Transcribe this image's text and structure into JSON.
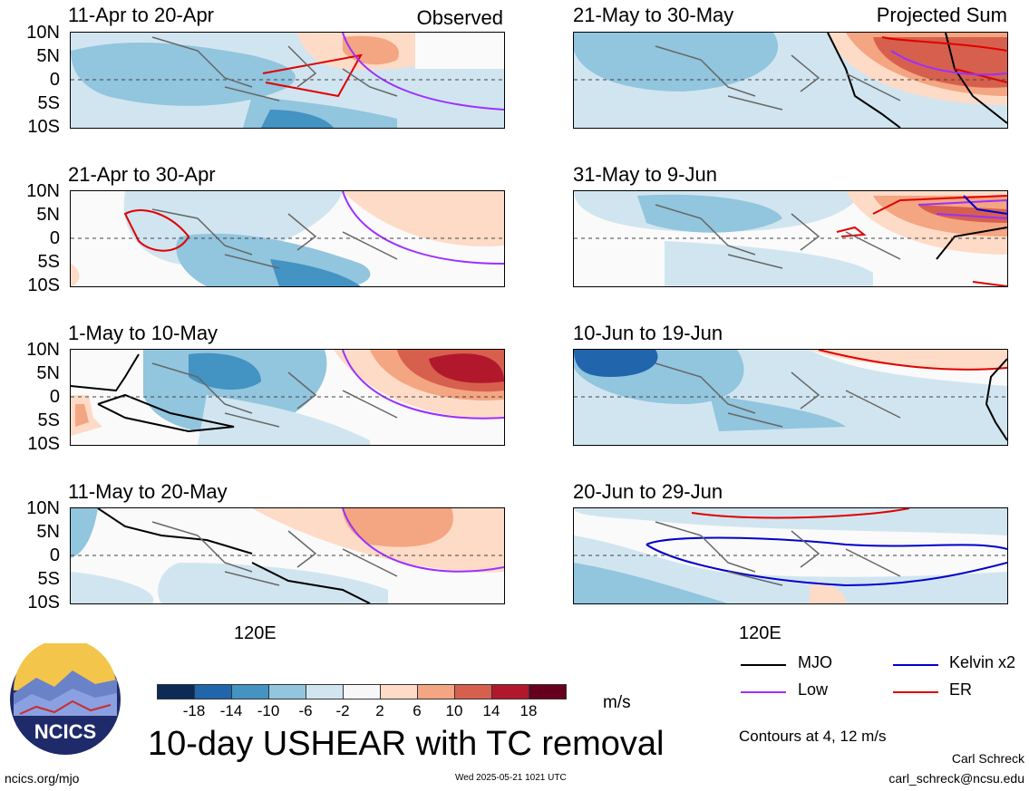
{
  "panels": [
    {
      "title": "11-Apr to 20-Apr",
      "tag": "Observed"
    },
    {
      "title": "21-Apr to 30-Apr",
      "tag": ""
    },
    {
      "title": "1-May to 10-May",
      "tag": ""
    },
    {
      "title": "11-May to 20-May",
      "tag": ""
    },
    {
      "title": "21-May to 30-May",
      "tag": "Projected Sum"
    },
    {
      "title": "31-May to 9-Jun",
      "tag": ""
    },
    {
      "title": "10-Jun to 19-Jun",
      "tag": ""
    },
    {
      "title": "20-Jun to 29-Jun",
      "tag": ""
    }
  ],
  "y_axis_labels": [
    "10N",
    "5N",
    "0",
    "5S",
    "10S"
  ],
  "x_axis_label": "120E",
  "colorbar": {
    "labels": [
      "-18",
      "-14",
      "-10",
      "-6",
      "-2",
      "2",
      "6",
      "10",
      "14",
      "18"
    ],
    "colors": [
      "#0b2a55",
      "#2166ac",
      "#4393c3",
      "#92c5de",
      "#d1e5f0",
      "#f7f7f7",
      "#fddbc7",
      "#f4a582",
      "#d6604d",
      "#b2182b",
      "#67001f"
    ],
    "unit": "m/s"
  },
  "legend": {
    "mjo": {
      "label": "MJO",
      "color": "#000000"
    },
    "low": {
      "label": "Low",
      "color": "#9b30ff"
    },
    "kelvin": {
      "label": "Kelvin x2",
      "color": "#0000cc"
    },
    "er": {
      "label": "ER",
      "color": "#e00000"
    }
  },
  "contours_note": "Contours at 4, 12 m/s",
  "main_title": "10-day USHEAR with TC removal",
  "logo_text": "NCICS",
  "footer": {
    "url": "ncics.org/mjo",
    "timestamp": "Wed 2025-05-21 1021 UTC",
    "author": "Carl Schreck",
    "email": "carl_schreck@ncsu.edu"
  }
}
